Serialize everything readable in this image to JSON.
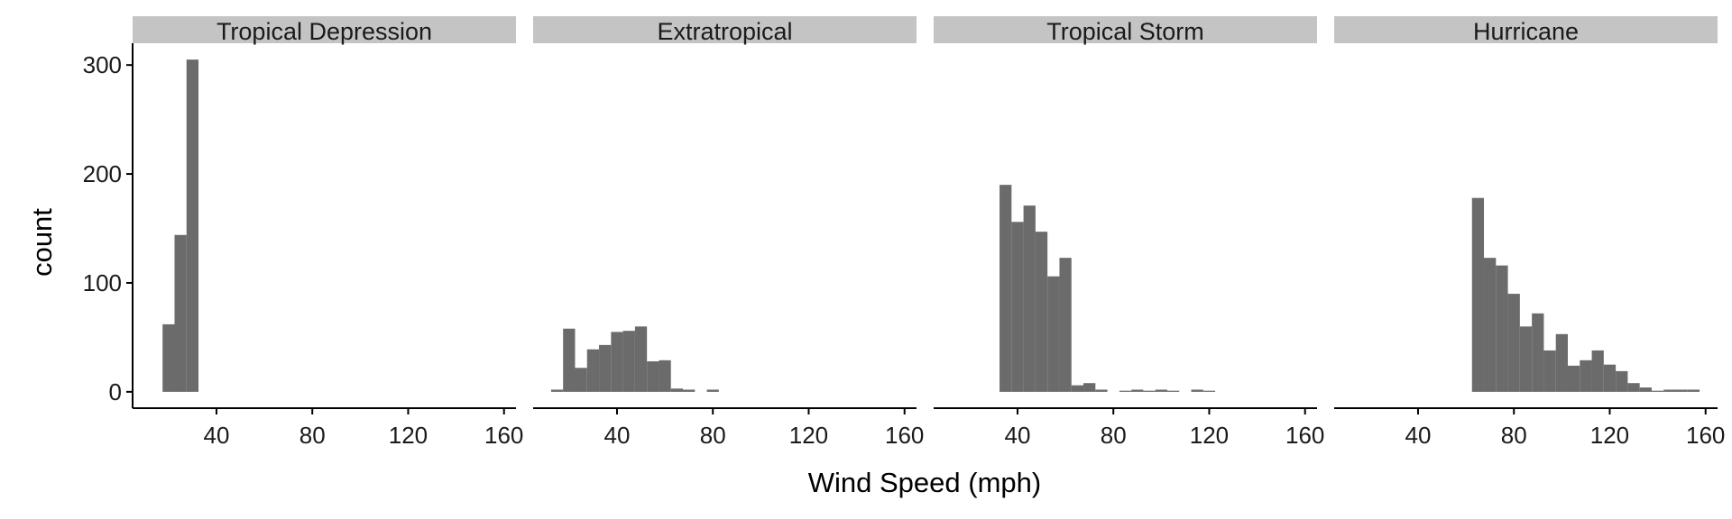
{
  "chart_data": {
    "type": "bar",
    "xlabel": "Wind Speed (mph)",
    "ylabel": "count",
    "xlim": [
      5,
      165
    ],
    "ylim": [
      -15,
      320
    ],
    "x_ticks": [
      40,
      80,
      120,
      160
    ],
    "y_ticks": [
      0,
      100,
      200,
      300
    ],
    "bin_width": 5,
    "panels": [
      {
        "name": "Tropical Depression",
        "bins": [
          {
            "x": 20,
            "count": 62
          },
          {
            "x": 25,
            "count": 144
          },
          {
            "x": 30,
            "count": 305
          }
        ]
      },
      {
        "name": "Extratropical",
        "bins": [
          {
            "x": 15,
            "count": 2
          },
          {
            "x": 20,
            "count": 58
          },
          {
            "x": 25,
            "count": 22
          },
          {
            "x": 30,
            "count": 39
          },
          {
            "x": 35,
            "count": 43
          },
          {
            "x": 40,
            "count": 55
          },
          {
            "x": 45,
            "count": 56
          },
          {
            "x": 50,
            "count": 60
          },
          {
            "x": 55,
            "count": 28
          },
          {
            "x": 60,
            "count": 29
          },
          {
            "x": 65,
            "count": 3
          },
          {
            "x": 70,
            "count": 2
          },
          {
            "x": 75,
            "count": 0
          },
          {
            "x": 80,
            "count": 2
          }
        ]
      },
      {
        "name": "Tropical Storm",
        "bins": [
          {
            "x": 35,
            "count": 190
          },
          {
            "x": 40,
            "count": 156
          },
          {
            "x": 45,
            "count": 171
          },
          {
            "x": 50,
            "count": 147
          },
          {
            "x": 55,
            "count": 106
          },
          {
            "x": 60,
            "count": 123
          },
          {
            "x": 65,
            "count": 6
          },
          {
            "x": 70,
            "count": 8
          },
          {
            "x": 75,
            "count": 2
          },
          {
            "x": 80,
            "count": 0
          },
          {
            "x": 85,
            "count": 1
          },
          {
            "x": 90,
            "count": 2
          },
          {
            "x": 95,
            "count": 1
          },
          {
            "x": 100,
            "count": 2
          },
          {
            "x": 105,
            "count": 1
          },
          {
            "x": 110,
            "count": 0
          },
          {
            "x": 115,
            "count": 2
          },
          {
            "x": 120,
            "count": 1
          }
        ]
      },
      {
        "name": "Hurricane",
        "bins": [
          {
            "x": 65,
            "count": 178
          },
          {
            "x": 70,
            "count": 123
          },
          {
            "x": 75,
            "count": 116
          },
          {
            "x": 80,
            "count": 90
          },
          {
            "x": 85,
            "count": 60
          },
          {
            "x": 90,
            "count": 72
          },
          {
            "x": 95,
            "count": 38
          },
          {
            "x": 100,
            "count": 53
          },
          {
            "x": 105,
            "count": 24
          },
          {
            "x": 110,
            "count": 29
          },
          {
            "x": 115,
            "count": 38
          },
          {
            "x": 120,
            "count": 25
          },
          {
            "x": 125,
            "count": 19
          },
          {
            "x": 130,
            "count": 8
          },
          {
            "x": 135,
            "count": 4
          },
          {
            "x": 140,
            "count": 1
          },
          {
            "x": 145,
            "count": 2
          },
          {
            "x": 150,
            "count": 2
          },
          {
            "x": 155,
            "count": 2
          }
        ]
      }
    ],
    "colors": {
      "bar": "#6b6b6b",
      "strip": "#c4c4c4",
      "axis": "#000000"
    },
    "grid": false
  }
}
